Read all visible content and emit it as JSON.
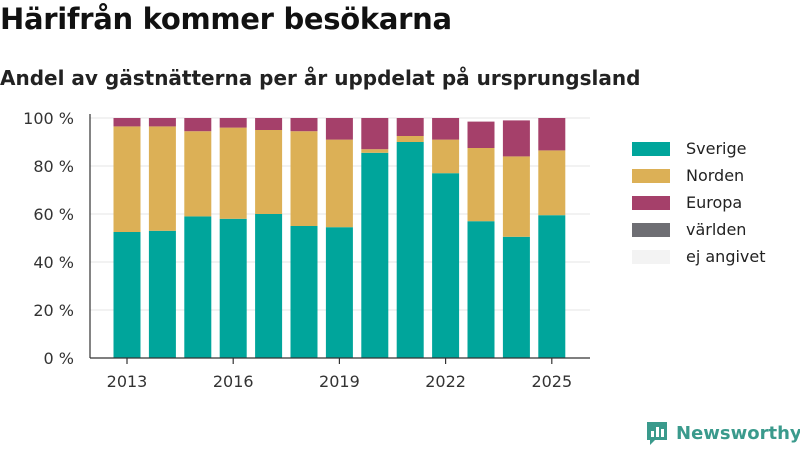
{
  "title": "Härifrån kommer besökarna",
  "subtitle": "Andel av gästnätterna per år uppdelat på ursprungsland",
  "brand": "Newsworthy",
  "colors": {
    "Sverige": "#00a59b",
    "Norden": "#dcb056",
    "Europa": "#a5406a",
    "världen": "#6e6e73",
    "ej angivet": "#f3f3f3",
    "brand": "#3a9a8c"
  },
  "chart_data": {
    "type": "bar",
    "stacked": true,
    "categories": [
      "2013",
      "2014",
      "2015",
      "2016",
      "2017",
      "2018",
      "2019",
      "2020",
      "2021",
      "2022",
      "2023",
      "2024",
      "2025"
    ],
    "x_tick_labels": [
      "2013",
      "2016",
      "2019",
      "2022",
      "2025"
    ],
    "y_tick_labels": [
      "0 %",
      "20 %",
      "40 %",
      "60 %",
      "80 %",
      "100 %"
    ],
    "ylim": [
      0,
      100
    ],
    "grid": true,
    "legend_position": "right",
    "series": [
      {
        "name": "Sverige",
        "values": [
          52.5,
          53,
          59,
          58,
          60,
          55,
          54.5,
          85.5,
          90,
          77,
          57,
          50.5,
          59.5
        ]
      },
      {
        "name": "Norden",
        "values": [
          44,
          43.5,
          35.5,
          38,
          35,
          39.5,
          36.5,
          1.5,
          2.5,
          14,
          30.5,
          33.5,
          27
        ]
      },
      {
        "name": "Europa",
        "values": [
          3.5,
          3.5,
          5.5,
          4,
          5,
          5.5,
          9,
          13,
          7.5,
          9,
          11,
          15,
          13.5
        ]
      },
      {
        "name": "världen",
        "values": [
          0,
          0,
          0,
          0,
          0,
          0,
          0,
          0,
          0,
          0,
          0,
          0,
          0
        ]
      },
      {
        "name": "ej angivet",
        "values": [
          0,
          0,
          0,
          0,
          0,
          0,
          0,
          0,
          0,
          0,
          0,
          0,
          0
        ]
      }
    ]
  }
}
